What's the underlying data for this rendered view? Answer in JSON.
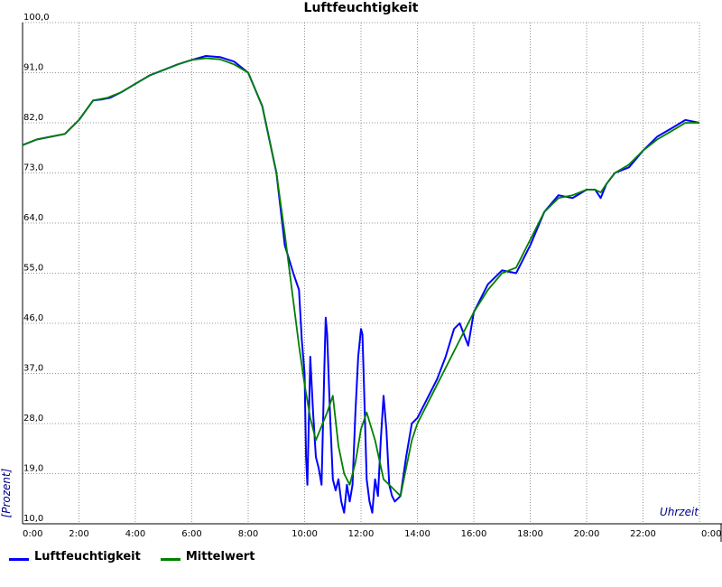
{
  "chart_data": {
    "type": "line",
    "title": "Luftfeuchtigkeit",
    "xlabel": "Uhrzeit",
    "ylabel": "[Prozent]",
    "xlim": [
      0,
      24
    ],
    "ylim": [
      10,
      100
    ],
    "grid": true,
    "legend_position": "bottom-left",
    "x_ticks": [
      "0:00",
      "2:00",
      "4:00",
      "6:00",
      "8:00",
      "10:00",
      "12:00",
      "14:00",
      "16:00",
      "18:00",
      "20:00",
      "22:00",
      "0:00"
    ],
    "y_ticks": [
      "10,0",
      "19,0",
      "28,0",
      "37,0",
      "46,0",
      "55,0",
      "64,0",
      "73,0",
      "82,0",
      "91,0",
      "100,0"
    ],
    "series": [
      {
        "name": "Luftfeuchtigkeit",
        "color": "#0000ff",
        "x": [
          0,
          0.5,
          1,
          1.5,
          2,
          2.5,
          2.8,
          3.1,
          3.5,
          4,
          4.5,
          5,
          5.5,
          6,
          6.5,
          7,
          7.5,
          8,
          8.5,
          9,
          9.3,
          9.6,
          9.8,
          9.9,
          10,
          10.05,
          10.1,
          10.2,
          10.3,
          10.4,
          10.5,
          10.6,
          10.7,
          10.75,
          10.8,
          10.9,
          11.0,
          11.1,
          11.2,
          11.3,
          11.4,
          11.5,
          11.6,
          11.7,
          11.8,
          11.9,
          12.0,
          12.05,
          12.1,
          12.2,
          12.3,
          12.4,
          12.5,
          12.6,
          12.7,
          12.8,
          12.9,
          13.0,
          13.1,
          13.2,
          13.4,
          13.6,
          13.8,
          14,
          14.3,
          14.7,
          15,
          15.3,
          15.5,
          15.8,
          16,
          16.5,
          17,
          17.5,
          18,
          18.5,
          19,
          19.5,
          20,
          20.3,
          20.5,
          20.7,
          21,
          21.5,
          22,
          22.5,
          23,
          23.5,
          24
        ],
        "y": [
          78,
          79,
          79.5,
          80,
          82.5,
          86,
          86.2,
          86.5,
          87.5,
          89,
          90.5,
          91.5,
          92.5,
          93.3,
          94,
          93.8,
          93,
          91,
          85,
          73,
          60,
          55,
          52,
          43,
          37,
          22,
          17,
          40,
          30,
          22,
          20,
          17,
          38,
          47,
          44,
          30,
          18,
          16,
          18,
          14,
          12,
          17,
          14,
          17,
          30,
          40,
          45,
          44,
          36,
          18,
          14,
          12,
          18,
          15,
          25,
          33,
          27,
          17,
          15,
          14,
          15,
          22,
          28,
          29,
          32,
          36,
          40,
          45,
          46,
          42,
          48,
          53,
          55.5,
          55,
          60,
          66,
          69,
          68.5,
          70,
          70,
          68.5,
          71,
          73,
          74,
          77,
          79.5,
          81,
          82.5,
          82
        ]
      },
      {
        "name": "Mittelwert",
        "color": "#008000",
        "x": [
          0,
          0.5,
          1,
          1.5,
          2,
          2.5,
          3,
          3.5,
          4,
          4.5,
          5,
          5.5,
          6,
          6.5,
          7,
          7.5,
          8,
          8.5,
          9,
          9.3,
          9.6,
          9.8,
          10.0,
          10.2,
          10.4,
          10.8,
          11.0,
          11.2,
          11.4,
          11.6,
          11.8,
          12.0,
          12.2,
          12.5,
          12.8,
          13.0,
          13.2,
          13.4,
          13.6,
          13.8,
          14,
          14.5,
          15,
          15.5,
          16,
          16.5,
          17,
          17.5,
          18,
          18.5,
          19,
          19.5,
          20,
          20.3,
          20.5,
          20.7,
          21,
          21.5,
          22,
          22.5,
          23,
          23.5,
          24
        ],
        "y": [
          78,
          79,
          79.5,
          80,
          82.5,
          86,
          86.5,
          87.5,
          89,
          90.5,
          91.5,
          92.5,
          93.3,
          93.6,
          93.4,
          92.5,
          91,
          85,
          73,
          62,
          50,
          42,
          35,
          29,
          25,
          30,
          33,
          24,
          19,
          17,
          21,
          27,
          30,
          25,
          18,
          17,
          16,
          15,
          20,
          25,
          28,
          33,
          38,
          43,
          48,
          52,
          55,
          56,
          61,
          66,
          68.5,
          69,
          70,
          70,
          69.5,
          71,
          73,
          74.5,
          77,
          79,
          80.5,
          82,
          82
        ]
      }
    ]
  }
}
